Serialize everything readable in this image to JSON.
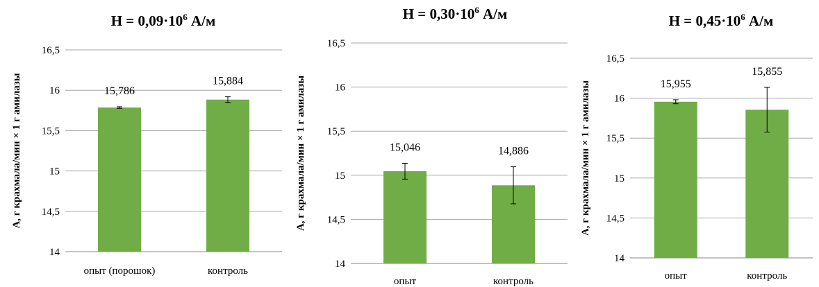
{
  "colors": {
    "bar": "#70ad47",
    "grid": "#a6a6a6",
    "axis": "#868686",
    "error": "#000000"
  },
  "chart_data": [
    {
      "type": "bar",
      "title": {
        "main": "H = 0,09·10",
        "sup": "6",
        "unit": " А/м"
      },
      "ylabel": "А, г крахмала/мин × 1 г амилазы",
      "categories": [
        "опыт (порошок)",
        "контроль"
      ],
      "values": [
        15.786,
        15.884
      ],
      "value_labels": [
        "15,786",
        "15,884"
      ],
      "errors": [
        0.01,
        0.035
      ],
      "ylim": [
        14,
        16.5
      ],
      "yticks": [
        14,
        14.5,
        15,
        15.5,
        16,
        16.5
      ],
      "ytick_labels": [
        "14",
        "14,5",
        "15",
        "15,5",
        "16",
        "16,5"
      ],
      "grid": true
    },
    {
      "type": "bar",
      "title": {
        "main": "H = 0,30·10",
        "sup": "6",
        "unit": " А/м"
      },
      "ylabel": "А, г крахмала/мин × 1 г амилазы",
      "categories": [
        "опыт",
        "контроль"
      ],
      "values": [
        15.046,
        14.886
      ],
      "value_labels": [
        "15,046",
        "14,886"
      ],
      "errors": [
        0.09,
        0.21
      ],
      "ylim": [
        14,
        16.5
      ],
      "yticks": [
        14,
        14.5,
        15,
        15.5,
        16,
        16.5
      ],
      "ytick_labels": [
        "14",
        "14,5",
        "15",
        "15,5",
        "16",
        "16,5"
      ],
      "grid": true
    },
    {
      "type": "bar",
      "title": {
        "main": "H = 0,45·10",
        "sup": "6",
        "unit": " А/м"
      },
      "ylabel": "А, г крахмала/мин × 1 г амилазы",
      "categories": [
        "опыт",
        "контроль"
      ],
      "values": [
        15.955,
        15.855
      ],
      "value_labels": [
        "15,955",
        "15,855"
      ],
      "errors": [
        0.025,
        0.28
      ],
      "ylim": [
        14,
        16.5
      ],
      "yticks": [
        14,
        14.5,
        15,
        15.5,
        16,
        16.5
      ],
      "ytick_labels": [
        "14",
        "14,5",
        "15",
        "15,5",
        "16",
        "16,5"
      ],
      "grid": true
    }
  ]
}
